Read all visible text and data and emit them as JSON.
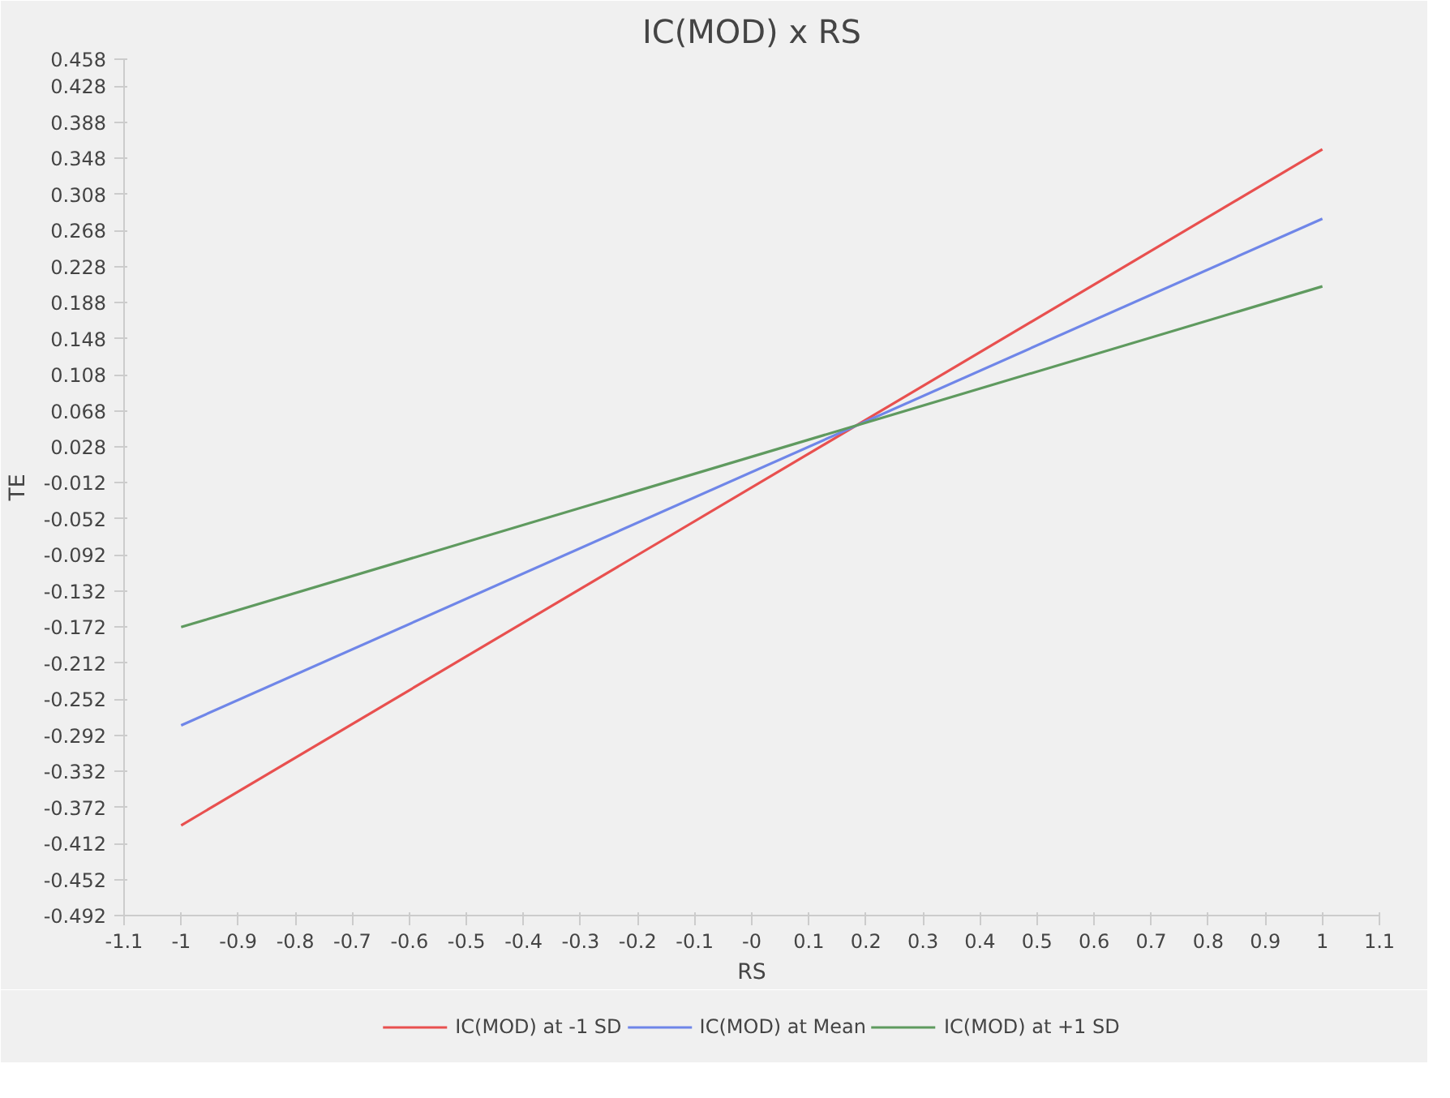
{
  "chart_data": {
    "type": "line",
    "title": "IC(MOD) x RS",
    "xlabel": "RS",
    "ylabel": "TE",
    "x": [
      -1,
      1
    ],
    "series": [
      {
        "name": "IC(MOD) at -1 SD",
        "color": "#e8504f",
        "values": [
          -0.392,
          0.358
        ]
      },
      {
        "name": "IC(MOD) at Mean",
        "color": "#6f86e8",
        "values": [
          -0.281,
          0.281
        ]
      },
      {
        "name": "IC(MOD) at +1 SD",
        "color": "#5f9a5f",
        "values": [
          -0.172,
          0.206
        ]
      }
    ],
    "xlim": [
      -1.1,
      1.1
    ],
    "xticks": [
      -1.1,
      -1,
      -0.9,
      -0.8,
      -0.7,
      -0.6,
      -0.5,
      -0.4,
      -0.3,
      -0.2,
      -0.1,
      {
        "value": 0,
        "label": "-0"
      },
      0.1,
      0.2,
      0.3,
      0.4,
      0.5,
      0.6,
      0.7,
      0.8,
      0.9,
      1,
      1.1
    ],
    "ylim": [
      -0.492,
      0.458
    ],
    "yticks": [
      -0.492,
      -0.452,
      -0.412,
      -0.372,
      -0.332,
      -0.292,
      -0.252,
      -0.212,
      -0.172,
      -0.132,
      -0.092,
      -0.052,
      -0.012,
      0.028,
      0.068,
      0.108,
      0.148,
      0.188,
      0.228,
      0.268,
      0.308,
      0.348,
      0.388,
      0.428,
      0.458
    ],
    "grid": false,
    "legend": "bottom",
    "marker": "none",
    "line_style": "solid"
  }
}
